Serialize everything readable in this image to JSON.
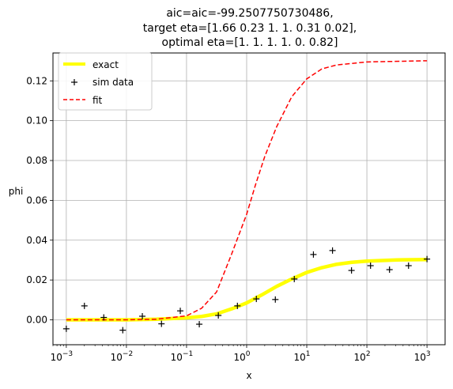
{
  "chart_data": {
    "type": "line",
    "title": [
      "aic=aic=-99.2507750730486,",
      "target eta=[1.66 0.23 1.   1.   0.31 0.02],",
      "optimal eta=[1.   1.   1.   1.   0.   0.82]"
    ],
    "xlabel": "x",
    "ylabel": "phi",
    "xscale": "log",
    "xlim": [
      0.0006,
      2000
    ],
    "ylim": [
      -0.0125,
      0.134
    ],
    "grid": true,
    "legend_position": "top-left",
    "x_ticks": [
      {
        "value": 0.001,
        "base": "10",
        "exp": "−3"
      },
      {
        "value": 0.01,
        "base": "10",
        "exp": "−2"
      },
      {
        "value": 0.1,
        "base": "10",
        "exp": "−1"
      },
      {
        "value": 1,
        "base": "10",
        "exp": "0"
      },
      {
        "value": 10,
        "base": "10",
        "exp": "1"
      },
      {
        "value": 100,
        "base": "10",
        "exp": "2"
      },
      {
        "value": 1000,
        "base": "10",
        "exp": "3"
      }
    ],
    "y_ticks": [
      {
        "value": 0.0,
        "label": "0.00"
      },
      {
        "value": 0.02,
        "label": "0.02"
      },
      {
        "value": 0.04,
        "label": "0.04"
      },
      {
        "value": 0.06,
        "label": "0.06"
      },
      {
        "value": 0.08,
        "label": "0.08"
      },
      {
        "value": 0.1,
        "label": "0.10"
      },
      {
        "value": 0.12,
        "label": "0.12"
      }
    ],
    "series": [
      {
        "name": "exact",
        "style": "line",
        "color": "#ffff00",
        "x": [
          0.001,
          0.00316,
          0.01,
          0.0316,
          0.1,
          0.178,
          0.316,
          0.562,
          1,
          1.78,
          3.16,
          5.62,
          10,
          17.8,
          31.6,
          56.2,
          100,
          316,
          1000
        ],
        "y": [
          0.0,
          0.0,
          0.0,
          0.0003,
          0.001,
          0.0017,
          0.003,
          0.0055,
          0.0085,
          0.0125,
          0.0168,
          0.0205,
          0.0238,
          0.0262,
          0.0279,
          0.0289,
          0.0295,
          0.0301,
          0.0303
        ]
      },
      {
        "name": "sim data",
        "style": "marker",
        "marker": "+",
        "color": "#000000",
        "x": [
          0.001,
          0.002,
          0.0042,
          0.0087,
          0.0184,
          0.0383,
          0.0787,
          0.163,
          0.338,
          0.702,
          1.45,
          3.0,
          6.2,
          12.9,
          26.8,
          55.5,
          115,
          238,
          493,
          1000
        ],
        "y": [
          -0.0045,
          0.007,
          0.0012,
          -0.0052,
          0.0018,
          -0.002,
          0.0045,
          -0.0022,
          0.0022,
          0.007,
          0.0105,
          0.0102,
          0.0205,
          0.0328,
          0.0348,
          0.0248,
          0.0272,
          0.0252,
          0.0272,
          0.0305
        ]
      },
      {
        "name": "fit",
        "style": "dashed",
        "color": "#ff0000",
        "x": [
          0.001,
          0.00316,
          0.01,
          0.0316,
          0.1,
          0.178,
          0.316,
          0.562,
          1,
          1.41,
          2,
          3.16,
          5.62,
          10,
          17.8,
          31.6,
          100,
          1000
        ],
        "y": [
          0.0,
          0.0,
          0.0,
          0.0003,
          0.002,
          0.0058,
          0.014,
          0.033,
          0.053,
          0.068,
          0.082,
          0.097,
          0.112,
          0.121,
          0.126,
          0.128,
          0.1295,
          0.1301
        ]
      }
    ]
  }
}
